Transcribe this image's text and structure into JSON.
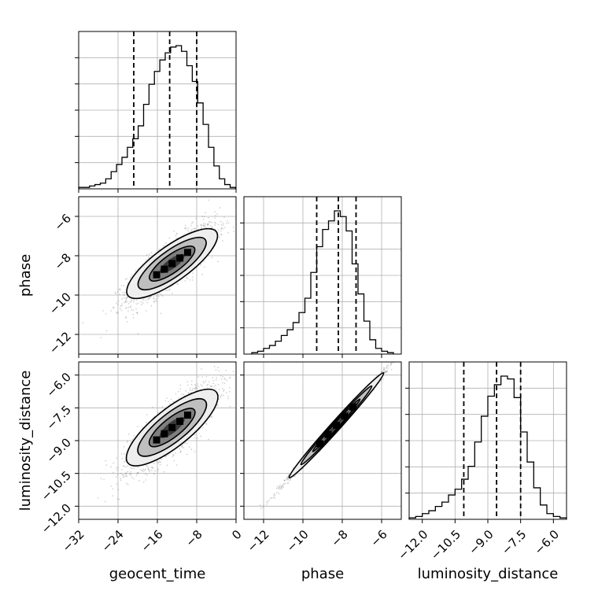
{
  "chart_data": {
    "type": "corner",
    "parameters": [
      "geocent_time",
      "phase",
      "luminosity_distance"
    ],
    "grid": true,
    "colors": {
      "hist": "#000000",
      "contour": "#000000",
      "samples": "#808080",
      "grid": "#b0b0b0"
    },
    "ranges": {
      "geocent_time": [
        -32,
        0
      ],
      "phase": [
        -13,
        -5
      ],
      "luminosity_distance": [
        -12.6,
        -5.4
      ]
    },
    "ticks": {
      "geocent_time": {
        "values": [
          -32,
          -24,
          -16,
          -8,
          0
        ],
        "labels": [
          "−32",
          "−24",
          "−16",
          "−8",
          "0"
        ]
      },
      "phase": {
        "values": [
          -12,
          -10,
          -8,
          -6
        ],
        "labels": [
          "−12",
          "−10",
          "−8",
          "−6"
        ]
      },
      "luminosity_distance": {
        "values": [
          -12.0,
          -10.5,
          -9.0,
          -7.5,
          -6.0
        ],
        "labels": [
          "−12.0",
          "−10.5",
          "−9.0",
          "−7.5",
          "−6.0"
        ]
      }
    },
    "quantiles": {
      "geocent_time": [
        -20.8,
        -13.5,
        -8.0
      ],
      "phase": [
        -9.3,
        -8.2,
        -7.3
      ],
      "luminosity_distance": [
        -10.1,
        -8.6,
        -7.5
      ]
    },
    "histograms": {
      "geocent_time": {
        "x0": -32,
        "bin": 1.1,
        "counts": [
          1,
          1,
          2,
          3,
          4,
          7,
          12,
          17,
          22,
          29,
          35,
          44,
          59,
          73,
          82,
          90,
          95,
          99,
          100,
          96,
          86,
          75,
          60,
          45,
          29,
          16,
          7,
          3,
          1
        ]
      },
      "phase": {
        "x0": -12.6,
        "bin": 0.3,
        "counts": [
          1,
          2,
          4,
          6,
          9,
          13,
          17,
          22,
          29,
          39,
          57,
          75,
          87,
          93,
          100,
          96,
          86,
          63,
          42,
          23,
          10,
          4,
          2,
          1
        ]
      },
      "luminosity_distance": {
        "x0": -12.6,
        "bin": 0.3,
        "counts": [
          1,
          2,
          4,
          6,
          9,
          12,
          17,
          21,
          28,
          37,
          54,
          72,
          86,
          94,
          100,
          98,
          85,
          61,
          40,
          22,
          10,
          4,
          2,
          1
        ]
      }
    },
    "pairs": [
      {
        "x": "geocent_time",
        "y": "phase",
        "slope": 0.18,
        "spread_x": 4.5,
        "spread_y": 0.55,
        "center": [
          -13.0,
          -8.4
        ]
      },
      {
        "x": "geocent_time",
        "y": "luminosity_distance",
        "slope": 0.18,
        "spread_x": 4.5,
        "spread_y": 0.55,
        "center": [
          -13.0,
          -8.4
        ]
      },
      {
        "x": "phase",
        "y": "luminosity_distance",
        "slope": 1.0,
        "spread_x": 1.2,
        "spread_y": 0.1,
        "center": [
          -8.3,
          -8.3
        ]
      }
    ]
  }
}
